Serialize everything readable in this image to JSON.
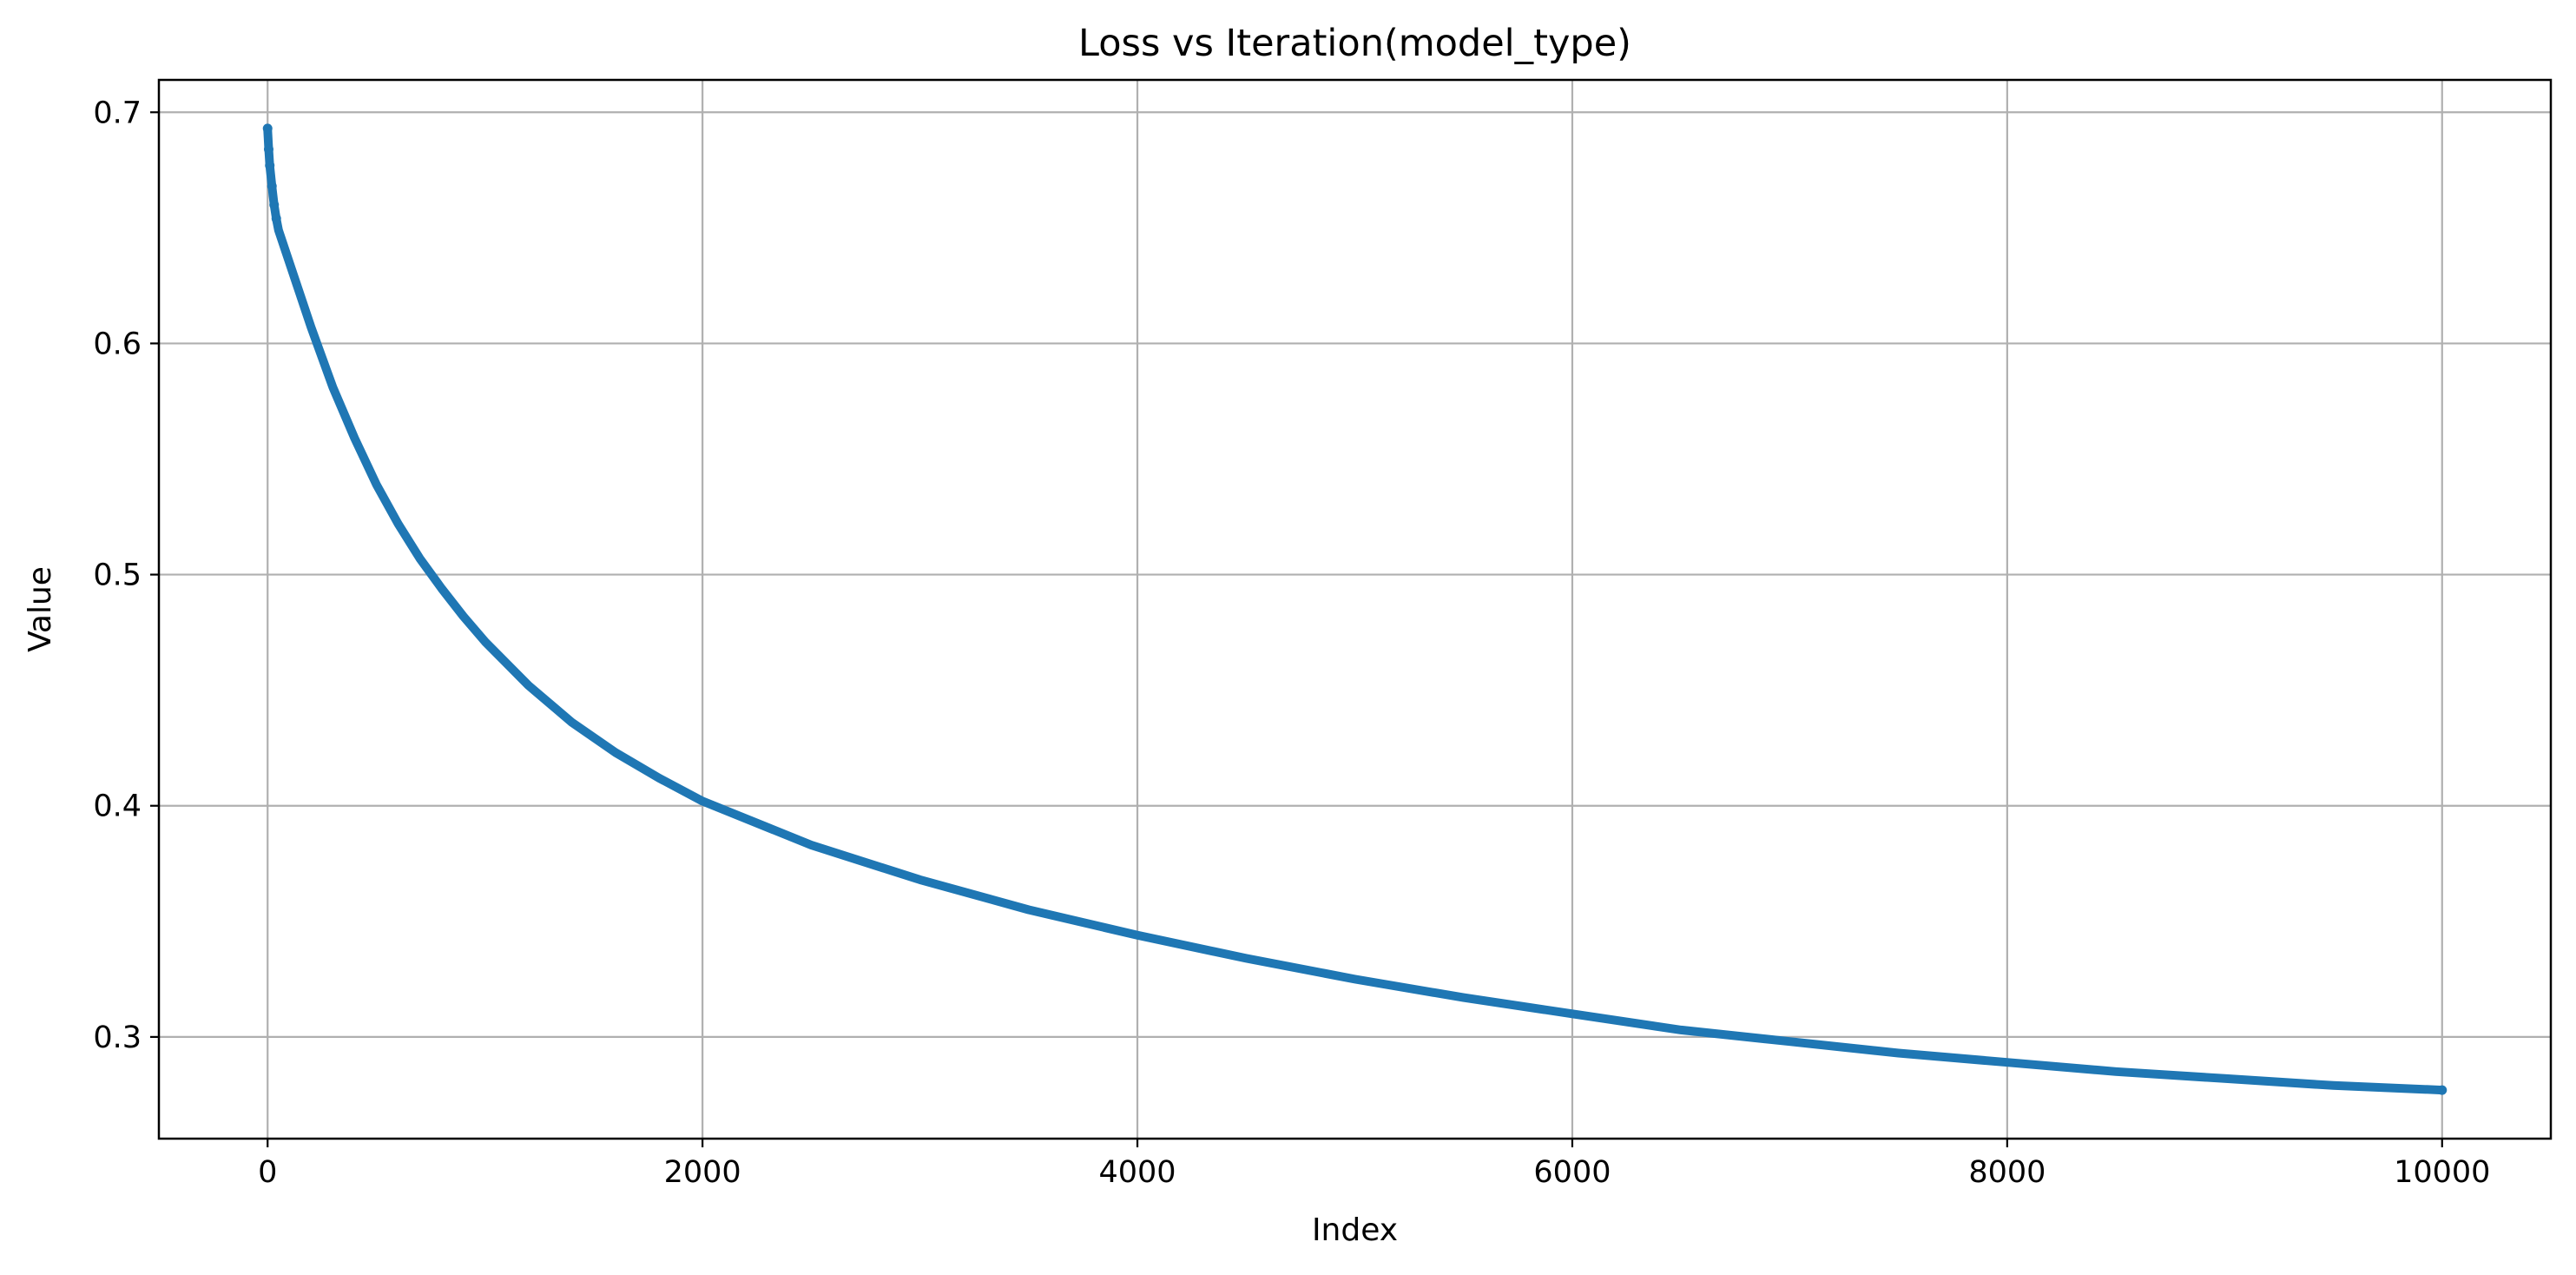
{
  "chart_data": {
    "type": "line",
    "title": "Loss vs Iteration(model_type)",
    "xlabel": "Index",
    "ylabel": "Value",
    "xlim": [
      -500,
      10500
    ],
    "ylim": [
      0.256,
      0.714
    ],
    "xticks": [
      0,
      2000,
      4000,
      6000,
      8000,
      10000
    ],
    "xtick_labels": [
      "0",
      "2000",
      "4000",
      "6000",
      "8000",
      "10000"
    ],
    "yticks": [
      0.3,
      0.4,
      0.5,
      0.6,
      0.7
    ],
    "ytick_labels": [
      "0.3",
      "0.4",
      "0.5",
      "0.6",
      "0.7"
    ],
    "grid": true,
    "line_color": "#1f77b4",
    "grid_color": "#b0b0b0",
    "series": [
      {
        "x": [
          0,
          5,
          10,
          20,
          30,
          40,
          50,
          100,
          200,
          300,
          400,
          500,
          600,
          700,
          800,
          900,
          1000,
          1200,
          1400,
          1600,
          1800,
          2000,
          2500,
          3000,
          3500,
          4000,
          4500,
          5000,
          5500,
          6000,
          6500,
          7000,
          7500,
          8000,
          8500,
          9000,
          9500,
          10000
        ],
        "y": [
          0.693,
          0.684,
          0.677,
          0.668,
          0.66,
          0.654,
          0.649,
          0.635,
          0.607,
          0.581,
          0.559,
          0.539,
          0.522,
          0.507,
          0.494,
          0.482,
          0.471,
          0.452,
          0.436,
          0.423,
          0.412,
          0.402,
          0.383,
          0.368,
          0.355,
          0.344,
          0.334,
          0.325,
          0.317,
          0.31,
          0.303,
          0.298,
          0.293,
          0.289,
          0.285,
          0.282,
          0.279,
          0.277
        ]
      }
    ]
  }
}
